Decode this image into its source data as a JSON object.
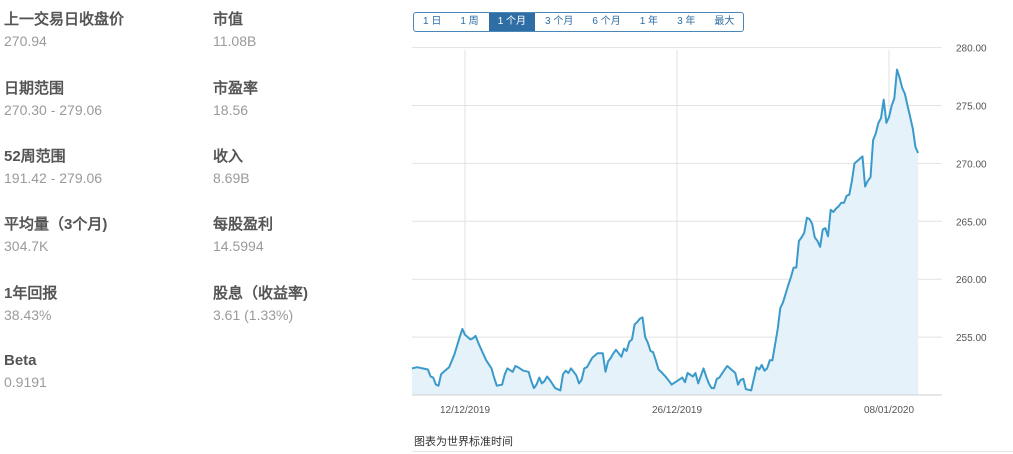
{
  "stats": [
    {
      "label": "上一交易日收盘价",
      "value": "270.94"
    },
    {
      "label": "市值",
      "value": "11.08B"
    },
    {
      "label": "日期范围",
      "value": "270.30 - 279.06"
    },
    {
      "label": "市盈率",
      "value": "18.56"
    },
    {
      "label": "52周范围",
      "value": "191.42 - 279.06"
    },
    {
      "label": "收入",
      "value": "8.69B"
    },
    {
      "label": "平均量（3个月)",
      "value": "304.7K"
    },
    {
      "label": "每股盈利",
      "value": "14.5994"
    },
    {
      "label": "1年回报",
      "value": "38.43%"
    },
    {
      "label": "股息（收益率)",
      "value": "3.61 (1.33%)"
    },
    {
      "label": "Beta",
      "value": "0.9191"
    }
  ],
  "range_buttons": [
    "1 日",
    "1 周",
    "1 个月",
    "3 个月",
    "6 个月",
    "1 年",
    "3 年",
    "最大"
  ],
  "active_range": "1 个月",
  "note": "图表为世界标准时间",
  "colors": {
    "line": "#3a9ac9",
    "fill": "#e6f2fa",
    "grid": "#e2e2e2",
    "active": "#2f6ea5"
  },
  "chart_data": {
    "type": "area",
    "x_range": [
      0,
      100
    ],
    "ylim": [
      250,
      281
    ],
    "y_ticks": [
      255,
      260,
      265,
      270,
      275,
      280
    ],
    "y_tick_labels": [
      "255.00",
      "260.00",
      "265.00",
      "270.00",
      "275.00",
      "280.00"
    ],
    "x_ticks": [
      {
        "x": 10,
        "label": "12/12/2019"
      },
      {
        "x": 50,
        "label": "26/12/2019"
      },
      {
        "x": 90,
        "label": "08/01/2020"
      }
    ],
    "series": [
      {
        "points": [
          [
            0,
            252.3
          ],
          [
            1,
            252.4
          ],
          [
            2,
            252.3
          ],
          [
            3,
            252.2
          ],
          [
            3.5,
            251.6
          ],
          [
            4,
            251.5
          ],
          [
            4.5,
            250.9
          ],
          [
            5,
            250.8
          ],
          [
            5.5,
            251.8
          ],
          [
            6,
            252.0
          ],
          [
            7,
            252.4
          ],
          [
            8,
            253.5
          ],
          [
            9,
            255.0
          ],
          [
            9.5,
            255.7
          ],
          [
            10,
            255.2
          ],
          [
            11,
            254.8
          ],
          [
            11.5,
            254.9
          ],
          [
            12,
            255.1
          ],
          [
            12.5,
            254.5
          ],
          [
            13,
            254.0
          ],
          [
            14,
            253.0
          ],
          [
            15,
            252.3
          ],
          [
            15.5,
            251.5
          ],
          [
            16,
            250.8
          ],
          [
            17,
            250.9
          ],
          [
            17.5,
            251.8
          ],
          [
            18,
            252.3
          ],
          [
            19,
            252.0
          ],
          [
            19.5,
            252.5
          ],
          [
            20,
            252.4
          ],
          [
            21,
            252.1
          ],
          [
            22,
            252.0
          ],
          [
            22.5,
            251.2
          ],
          [
            23,
            250.6
          ],
          [
            23.5,
            250.9
          ],
          [
            24,
            251.5
          ],
          [
            24.5,
            251.0
          ],
          [
            25,
            251.2
          ],
          [
            25.5,
            251.6
          ],
          [
            26,
            251.3
          ],
          [
            27,
            250.6
          ],
          [
            28,
            250.4
          ],
          [
            28.5,
            251.8
          ],
          [
            29,
            252.1
          ],
          [
            29.5,
            251.9
          ],
          [
            30,
            252.3
          ],
          [
            31,
            251.7
          ],
          [
            31.5,
            251.0
          ],
          [
            32,
            251.3
          ],
          [
            32.5,
            252.3
          ],
          [
            33,
            252.4
          ],
          [
            34,
            253.2
          ],
          [
            35,
            253.6
          ],
          [
            36,
            253.6
          ],
          [
            36.5,
            252.0
          ],
          [
            37,
            252.9
          ],
          [
            37.5,
            253.2
          ],
          [
            38,
            253.6
          ],
          [
            38.5,
            253.9
          ],
          [
            39,
            253.6
          ],
          [
            39.5,
            253.3
          ],
          [
            40,
            254.0
          ],
          [
            40.5,
            253.8
          ],
          [
            41,
            254.6
          ],
          [
            41.5,
            254.8
          ],
          [
            42,
            256.1
          ],
          [
            42.5,
            256.3
          ],
          [
            43,
            256.6
          ],
          [
            43.5,
            256.7
          ],
          [
            44,
            255.0
          ],
          [
            44.5,
            254.5
          ],
          [
            45,
            253.8
          ],
          [
            45.5,
            253.7
          ],
          [
            46,
            253.0
          ],
          [
            46.5,
            252.2
          ],
          [
            47,
            252.0
          ],
          [
            48,
            251.5
          ],
          [
            49,
            250.9
          ],
          [
            50,
            251.2
          ],
          [
            51,
            251.5
          ],
          [
            51.5,
            251.1
          ],
          [
            52,
            251.9
          ],
          [
            53,
            251.6
          ],
          [
            53.5,
            251.9
          ],
          [
            54,
            251.0
          ],
          [
            55,
            252.3
          ],
          [
            55.5,
            251.6
          ],
          [
            56,
            251.0
          ],
          [
            56.5,
            250.6
          ],
          [
            57,
            250.6
          ],
          [
            57.5,
            251.4
          ],
          [
            58,
            251.5
          ],
          [
            59,
            252.2
          ],
          [
            59.5,
            252.5
          ],
          [
            60,
            252.3
          ],
          [
            61,
            251.9
          ],
          [
            61.5,
            250.9
          ],
          [
            62,
            251.3
          ],
          [
            62.5,
            251.4
          ],
          [
            63,
            250.5
          ],
          [
            64,
            250.4
          ],
          [
            65,
            252.4
          ],
          [
            65.5,
            252.2
          ],
          [
            66,
            252.6
          ],
          [
            66.5,
            252.1
          ],
          [
            67,
            252.3
          ],
          [
            67.5,
            253.0
          ],
          [
            68,
            253.0
          ],
          [
            69,
            255.7
          ],
          [
            69.5,
            257.5
          ],
          [
            70,
            258.0
          ],
          [
            71,
            259.5
          ],
          [
            71.5,
            260.2
          ],
          [
            72,
            261.0
          ],
          [
            72.5,
            261.0
          ],
          [
            73,
            263.3
          ],
          [
            73.5,
            263.6
          ],
          [
            74,
            264.0
          ],
          [
            74.5,
            265.3
          ],
          [
            75,
            265.2
          ],
          [
            75.5,
            264.8
          ],
          [
            76,
            263.6
          ],
          [
            76.5,
            263.3
          ],
          [
            77,
            262.8
          ],
          [
            77.5,
            264.3
          ],
          [
            78,
            264.4
          ],
          [
            78.5,
            263.7
          ],
          [
            79,
            266.0
          ],
          [
            79.5,
            265.8
          ],
          [
            80,
            266.1
          ],
          [
            80.5,
            266.3
          ],
          [
            81,
            266.6
          ],
          [
            81.5,
            266.6
          ],
          [
            82,
            267.2
          ],
          [
            82.5,
            267.3
          ],
          [
            83,
            268.5
          ],
          [
            83.5,
            270.0
          ],
          [
            84,
            270.2
          ],
          [
            84.5,
            270.4
          ],
          [
            85,
            270.6
          ],
          [
            85.5,
            268.0
          ],
          [
            86,
            268.5
          ],
          [
            86.5,
            268.8
          ],
          [
            87,
            272.0
          ],
          [
            87.5,
            272.6
          ],
          [
            88,
            273.5
          ],
          [
            88.5,
            273.9
          ],
          [
            89,
            275.5
          ],
          [
            89.5,
            273.5
          ],
          [
            90,
            274.0
          ],
          [
            90.5,
            275.0
          ],
          [
            91,
            275.6
          ],
          [
            91.5,
            278.1
          ],
          [
            92,
            277.4
          ],
          [
            92.5,
            276.5
          ],
          [
            93,
            276.0
          ],
          [
            93.5,
            275.0
          ],
          [
            94,
            274.0
          ],
          [
            94.5,
            273.0
          ],
          [
            95,
            271.4
          ],
          [
            95.5,
            270.9
          ]
        ]
      }
    ]
  }
}
